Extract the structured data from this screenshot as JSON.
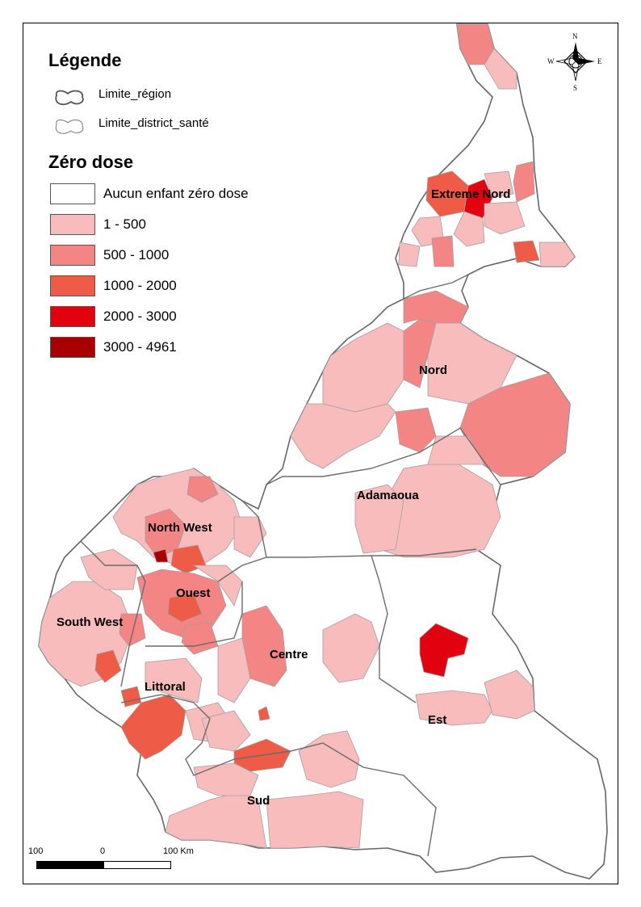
{
  "legend": {
    "title": "Légende",
    "boundaries": [
      {
        "label": "Limite_région"
      },
      {
        "label": "Limite_district_santé"
      }
    ]
  },
  "classification": {
    "title": "Zéro dose",
    "classes": [
      {
        "label": "Aucun enfant zéro dose",
        "color": "#ffffff"
      },
      {
        "label": "1 - 500",
        "color": "#f8bcbc"
      },
      {
        "label": "500 - 1000",
        "color": "#f48585"
      },
      {
        "label": "1000 - 2000",
        "color": "#ee5b46"
      },
      {
        "label": "2000 - 3000",
        "color": "#e2010f"
      },
      {
        "label": "3000 - 4961",
        "color": "#a80000"
      }
    ]
  },
  "regions": [
    {
      "name": "Extreme Nord"
    },
    {
      "name": "Nord"
    },
    {
      "name": "Adamaoua"
    },
    {
      "name": "North West"
    },
    {
      "name": "Ouest"
    },
    {
      "name": "South West"
    },
    {
      "name": "Centre"
    },
    {
      "name": "Littoral"
    },
    {
      "name": "Est"
    },
    {
      "name": "Sud"
    }
  ],
  "north_arrow": {
    "n": "N",
    "s": "S",
    "e": "E",
    "w": "W"
  },
  "scale_bar": {
    "labels": [
      "100",
      "0",
      "100 Km"
    ]
  }
}
